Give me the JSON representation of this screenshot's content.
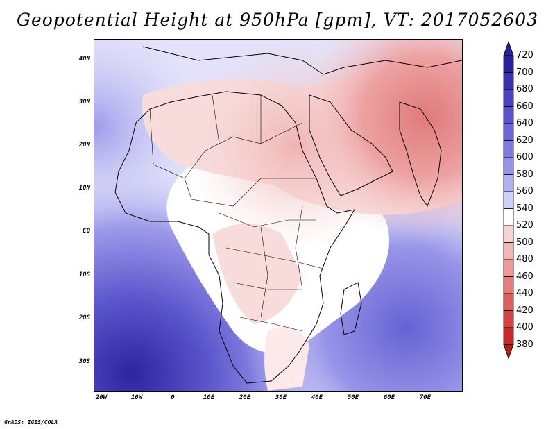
{
  "title": "Geopotential Height at 950hPa [gpm], VT: 2017052603",
  "credit": "GrADS: IGES/COLA",
  "map": {
    "lat_labels": [
      "40N",
      "30N",
      "20N",
      "10N",
      "EQ",
      "10S",
      "20S",
      "30S"
    ],
    "lon_labels": [
      "20W",
      "10W",
      "0",
      "10E",
      "20E",
      "30E",
      "40E",
      "50E",
      "60E",
      "70E"
    ]
  },
  "colorbar": {
    "labels": [
      "720",
      "700",
      "680",
      "660",
      "640",
      "620",
      "600",
      "580",
      "560",
      "540",
      "520",
      "500",
      "480",
      "460",
      "440",
      "420",
      "400",
      "380"
    ],
    "colors": [
      "#2a1f9e",
      "#3a30b0",
      "#4a42c0",
      "#5a54cc",
      "#6b67d6",
      "#7f7cdf",
      "#9794e8",
      "#b2b0f0",
      "#d0cff7",
      "#ffffff",
      "#f6d4d4",
      "#f2b7b7",
      "#ec9a9a",
      "#e67d7d",
      "#de5f5f",
      "#d64343",
      "#c92929",
      "#b71a1a"
    ]
  }
}
